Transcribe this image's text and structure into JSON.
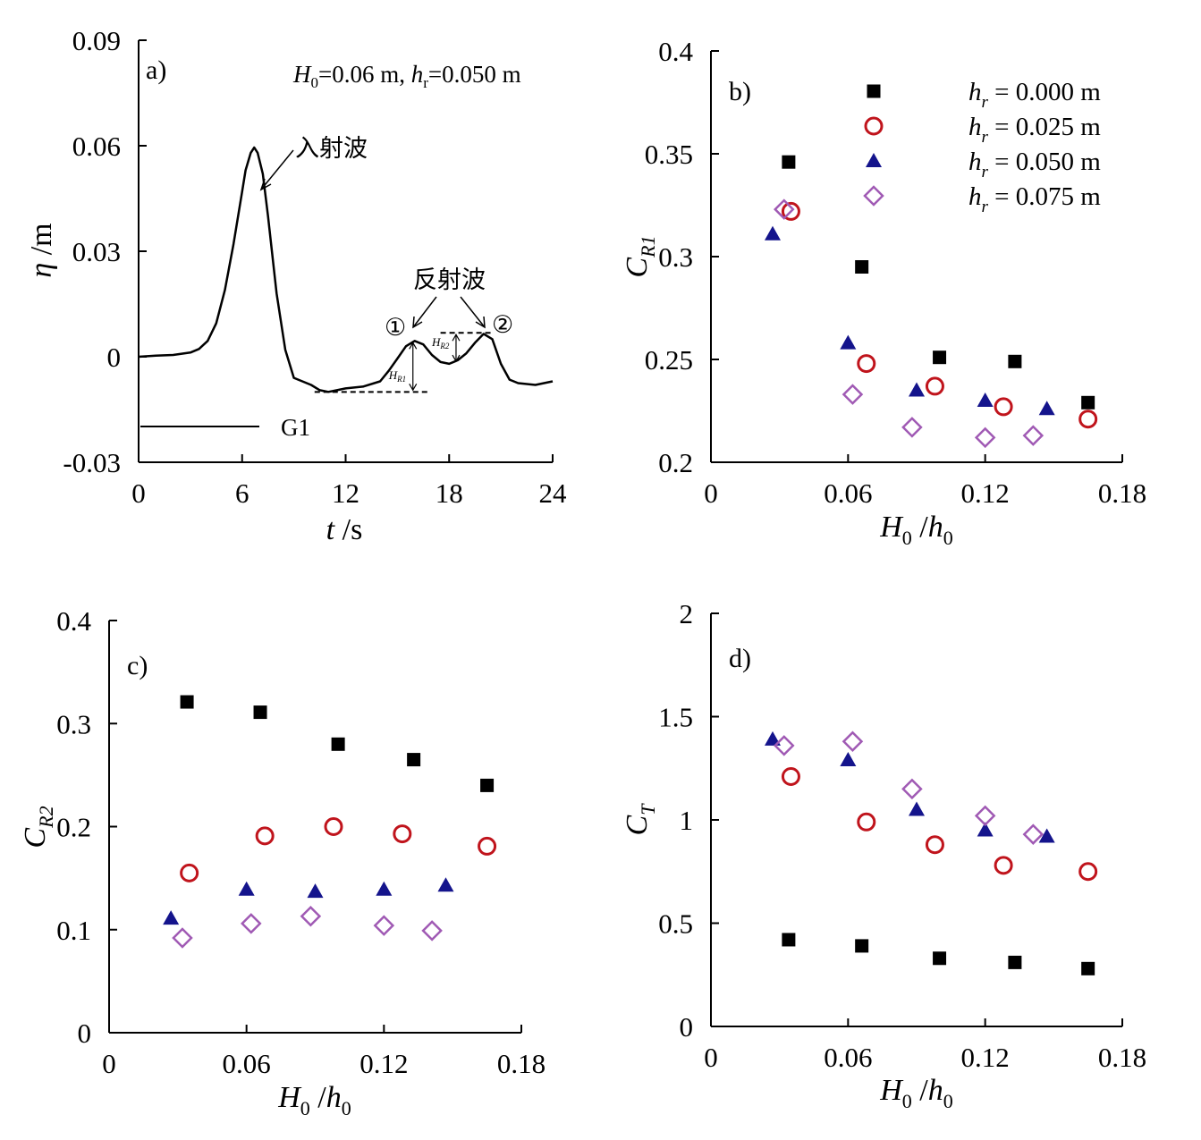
{
  "chart_data": [
    {
      "type": "line",
      "panel_label": "a)",
      "annotation": "H0=0.06 m, hr=0.050 m",
      "annotation_parts": {
        "H": "H",
        "H_sub": "0",
        "eq1": "=0.06 m, ",
        "h": "h",
        "h_sub": "r",
        "eq2": "=0.050 m"
      },
      "xlabel": {
        "var": "t",
        "unit": " /s"
      },
      "ylabel": {
        "var": "η",
        "unit": " /m"
      },
      "xlim": [
        0,
        24
      ],
      "ylim": [
        -0.03,
        0.09
      ],
      "xticks": [
        "0",
        "6",
        "12",
        "18",
        "24"
      ],
      "yticks": [
        "-0.03",
        "0",
        "0.03",
        "0.06",
        "0.09"
      ],
      "gauge_label": "G1",
      "labels": {
        "incident": "入射波",
        "reflected": "反射波",
        "peak1": "①",
        "peak2": "②",
        "HR1": "H",
        "HR1_sub": "R1",
        "HR2": "H",
        "HR2_sub": "R2"
      },
      "series": [
        {
          "x": [
            0,
            1,
            2,
            3,
            3.5,
            4,
            4.5,
            5,
            5.5,
            6,
            6.2,
            6.5,
            6.7,
            6.9,
            7.2,
            7.5,
            8,
            8.5,
            9,
            10,
            10.5,
            11,
            12,
            13,
            14,
            14.5,
            15,
            15.5,
            16,
            16.5,
            17,
            17.5,
            18,
            18.5,
            19,
            19.5,
            20,
            20.5,
            21,
            21.5,
            22,
            23,
            24
          ],
          "y": [
            0,
            0.0003,
            0.0005,
            0.0012,
            0.0022,
            0.0045,
            0.0095,
            0.019,
            0.032,
            0.047,
            0.053,
            0.058,
            0.0595,
            0.058,
            0.052,
            0.04,
            0.018,
            0.002,
            -0.006,
            -0.008,
            -0.0095,
            -0.01,
            -0.009,
            -0.0085,
            -0.007,
            -0.004,
            -0.0005,
            0.003,
            0.0045,
            0.0035,
            0.0005,
            -0.0015,
            -0.002,
            -0.001,
            0.001,
            0.004,
            0.0065,
            0.005,
            -0.002,
            -0.0065,
            -0.0075,
            -0.008,
            -0.007
          ]
        }
      ]
    },
    {
      "type": "scatter",
      "panel_label": "b)",
      "xlabel": {
        "var": "H",
        "sub": "0",
        "sep": " /",
        "var2": "h",
        "sub2": "0"
      },
      "ylabel": {
        "var": "C",
        "sub": "R1"
      },
      "xlim": [
        0,
        0.18
      ],
      "ylim": [
        0.2,
        0.4
      ],
      "xticks": [
        "0",
        "0.06",
        "0.12",
        "0.18"
      ],
      "yticks": [
        "0.2",
        "0.25",
        "0.3",
        "0.35",
        "0.4"
      ],
      "series": [
        {
          "name": "hr = 0.000 m",
          "name_parts": {
            "v": "h",
            "s": "r",
            "rest": " = 0.000 m"
          },
          "marker": "square",
          "color": "#000000",
          "x": [
            0.034,
            0.066,
            0.1,
            0.133,
            0.165
          ],
          "y": [
            0.346,
            0.295,
            0.251,
            0.249,
            0.229
          ]
        },
        {
          "name": "hr = 0.025 m",
          "name_parts": {
            "v": "h",
            "s": "r",
            "rest": " = 0.025 m"
          },
          "marker": "circle",
          "color": "#c0141c",
          "x": [
            0.035,
            0.068,
            0.098,
            0.128,
            0.165
          ],
          "y": [
            0.322,
            0.248,
            0.237,
            0.227,
            0.221
          ]
        },
        {
          "name": "hr = 0.050 m",
          "name_parts": {
            "v": "h",
            "s": "r",
            "rest": " = 0.050 m"
          },
          "marker": "triangle",
          "color": "#14148c",
          "x": [
            0.027,
            0.06,
            0.09,
            0.12,
            0.147
          ],
          "y": [
            0.311,
            0.258,
            0.235,
            0.23,
            0.226
          ]
        },
        {
          "name": "hr = 0.075 m",
          "name_parts": {
            "v": "h",
            "s": "r",
            "rest": " = 0.075 m"
          },
          "marker": "diamond",
          "color": "#a05ab4",
          "x": [
            0.032,
            0.062,
            0.088,
            0.12,
            0.141
          ],
          "y": [
            0.323,
            0.233,
            0.217,
            0.212,
            0.213
          ]
        }
      ]
    },
    {
      "type": "scatter",
      "panel_label": "c)",
      "xlabel": {
        "var": "H",
        "sub": "0",
        "sep": " /",
        "var2": "h",
        "sub2": "0"
      },
      "ylabel": {
        "var": "C",
        "sub": "R2"
      },
      "xlim": [
        0,
        0.18
      ],
      "ylim": [
        0,
        0.4
      ],
      "xticks": [
        "0",
        "0.06",
        "0.12",
        "0.18"
      ],
      "yticks": [
        "0",
        "0.1",
        "0.2",
        "0.3",
        "0.4"
      ],
      "series": [
        {
          "name": "hr = 0.000 m",
          "marker": "square",
          "color": "#000000",
          "x": [
            0.034,
            0.066,
            0.1,
            0.133,
            0.165
          ],
          "y": [
            0.321,
            0.311,
            0.28,
            0.265,
            0.24
          ]
        },
        {
          "name": "hr = 0.025 m",
          "marker": "circle",
          "color": "#c0141c",
          "x": [
            0.035,
            0.068,
            0.098,
            0.128,
            0.165
          ],
          "y": [
            0.155,
            0.191,
            0.2,
            0.193,
            0.181
          ]
        },
        {
          "name": "hr = 0.050 m",
          "marker": "triangle",
          "color": "#14148c",
          "x": [
            0.027,
            0.06,
            0.09,
            0.12,
            0.147
          ],
          "y": [
            0.111,
            0.139,
            0.137,
            0.139,
            0.143
          ]
        },
        {
          "name": "hr = 0.075 m",
          "marker": "diamond",
          "color": "#a05ab4",
          "x": [
            0.032,
            0.062,
            0.088,
            0.12,
            0.141
          ],
          "y": [
            0.092,
            0.106,
            0.113,
            0.104,
            0.099
          ]
        }
      ]
    },
    {
      "type": "scatter",
      "panel_label": "d)",
      "xlabel": {
        "var": "H",
        "sub": "0",
        "sep": " /",
        "var2": "h",
        "sub2": "0"
      },
      "ylabel": {
        "var": "C",
        "sub": "T"
      },
      "xlim": [
        0,
        0.18
      ],
      "ylim": [
        0,
        2
      ],
      "xticks": [
        "0",
        "0.06",
        "0.12",
        "0.18"
      ],
      "yticks": [
        "0",
        "0.5",
        "1",
        "1.5",
        "2"
      ],
      "series": [
        {
          "name": "hr = 0.000 m",
          "marker": "square",
          "color": "#000000",
          "x": [
            0.034,
            0.066,
            0.1,
            0.133,
            0.165
          ],
          "y": [
            0.42,
            0.39,
            0.33,
            0.31,
            0.28
          ]
        },
        {
          "name": "hr = 0.025 m",
          "marker": "circle",
          "color": "#c0141c",
          "x": [
            0.035,
            0.068,
            0.098,
            0.128,
            0.165
          ],
          "y": [
            1.21,
            0.99,
            0.88,
            0.78,
            0.75
          ]
        },
        {
          "name": "hr = 0.050 m",
          "marker": "triangle",
          "color": "#14148c",
          "x": [
            0.027,
            0.06,
            0.09,
            0.12,
            0.147
          ],
          "y": [
            1.39,
            1.29,
            1.05,
            0.95,
            0.92
          ]
        },
        {
          "name": "hr = 0.075 m",
          "marker": "diamond",
          "color": "#a05ab4",
          "x": [
            0.032,
            0.062,
            0.088,
            0.12,
            0.141
          ],
          "y": [
            1.36,
            1.38,
            1.15,
            1.02,
            0.93
          ]
        }
      ]
    }
  ]
}
